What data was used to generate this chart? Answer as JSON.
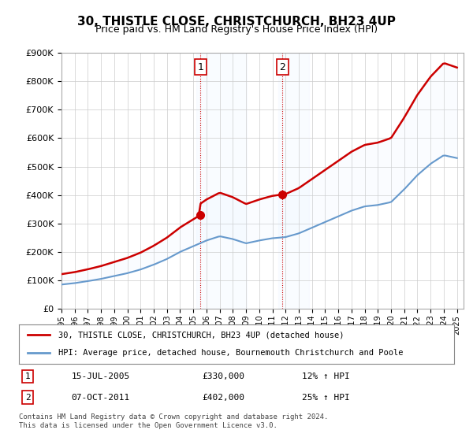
{
  "title": "30, THISTLE CLOSE, CHRISTCHURCH, BH23 4UP",
  "subtitle": "Price paid vs. HM Land Registry's House Price Index (HPI)",
  "ylabel_ticks": [
    "£0",
    "£100K",
    "£200K",
    "£300K",
    "£400K",
    "£500K",
    "£600K",
    "£700K",
    "£800K",
    "£900K"
  ],
  "ylim": [
    0,
    900000
  ],
  "xlim_start": 1995.5,
  "xlim_end": 2025.5,
  "sale1_year": 2005.54,
  "sale1_price": 330000,
  "sale1_label": "1",
  "sale1_date": "15-JUL-2005",
  "sale1_hpi": "12% ↑ HPI",
  "sale2_year": 2011.77,
  "sale2_price": 402000,
  "sale2_label": "2",
  "sale2_date": "07-OCT-2011",
  "sale2_hpi": "25% ↑ HPI",
  "legend_line1": "30, THISTLE CLOSE, CHRISTCHURCH, BH23 4UP (detached house)",
  "legend_line2": "HPI: Average price, detached house, Bournemouth Christchurch and Poole",
  "footer": "Contains HM Land Registry data © Crown copyright and database right 2024.\nThis data is licensed under the Open Government Licence v3.0.",
  "line1_color": "#cc0000",
  "line2_color": "#6699cc",
  "shade_color": "#ddeeff",
  "marker_color": "#cc0000",
  "sale_box_color": "#cc0000",
  "grid_color": "#cccccc",
  "bg_color": "#ffffff"
}
